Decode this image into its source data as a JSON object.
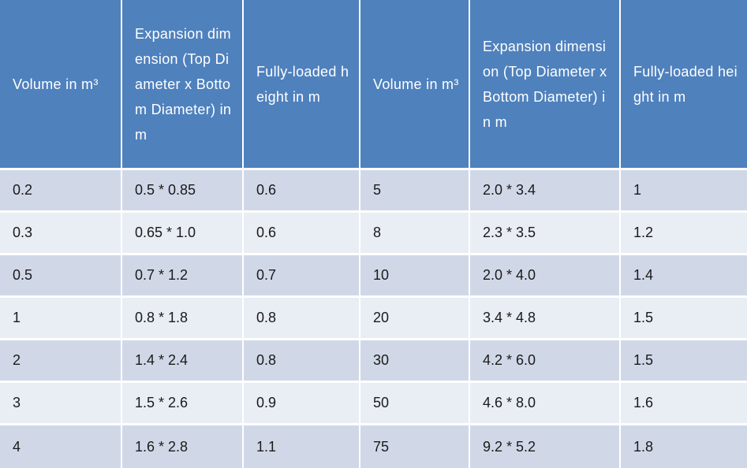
{
  "table": {
    "headers": [
      "Volume in m³",
      "Expansion dimension (Top Diameter x Bottom Diameter) in m",
      "Fully-loaded height in m",
      "Volume in m³",
      "Expansion dimension (Top Diameter x Bottom Diameter) in m",
      "Fully-loaded height in m"
    ],
    "rows": [
      [
        "0.2",
        "0.5 * 0.85",
        "0.6",
        "5",
        "2.0 * 3.4",
        "1"
      ],
      [
        "0.3",
        "0.65 * 1.0",
        "0.6",
        "8",
        "2.3 * 3.5",
        "1.2"
      ],
      [
        "0.5",
        "0.7 * 1.2",
        "0.7",
        "10",
        "2.0 * 4.0",
        "1.4"
      ],
      [
        "1",
        "0.8 * 1.8",
        "0.8",
        "20",
        "3.4 * 4.8",
        "1.5"
      ],
      [
        "2",
        "1.4 * 2.4",
        "0.8",
        "30",
        "4.2 * 6.0",
        "1.5"
      ],
      [
        "3",
        "1.5 * 2.6",
        "0.9",
        "50",
        "4.6 * 8.0",
        "1.6"
      ],
      [
        "4",
        "1.6 * 2.8",
        "1.1",
        "75",
        "9.2 * 5.2",
        "1.8"
      ]
    ]
  },
  "colors": {
    "header_bg": "#4f81bd",
    "row_odd_bg": "#d0d8e8",
    "row_even_bg": "#e9edf4"
  }
}
